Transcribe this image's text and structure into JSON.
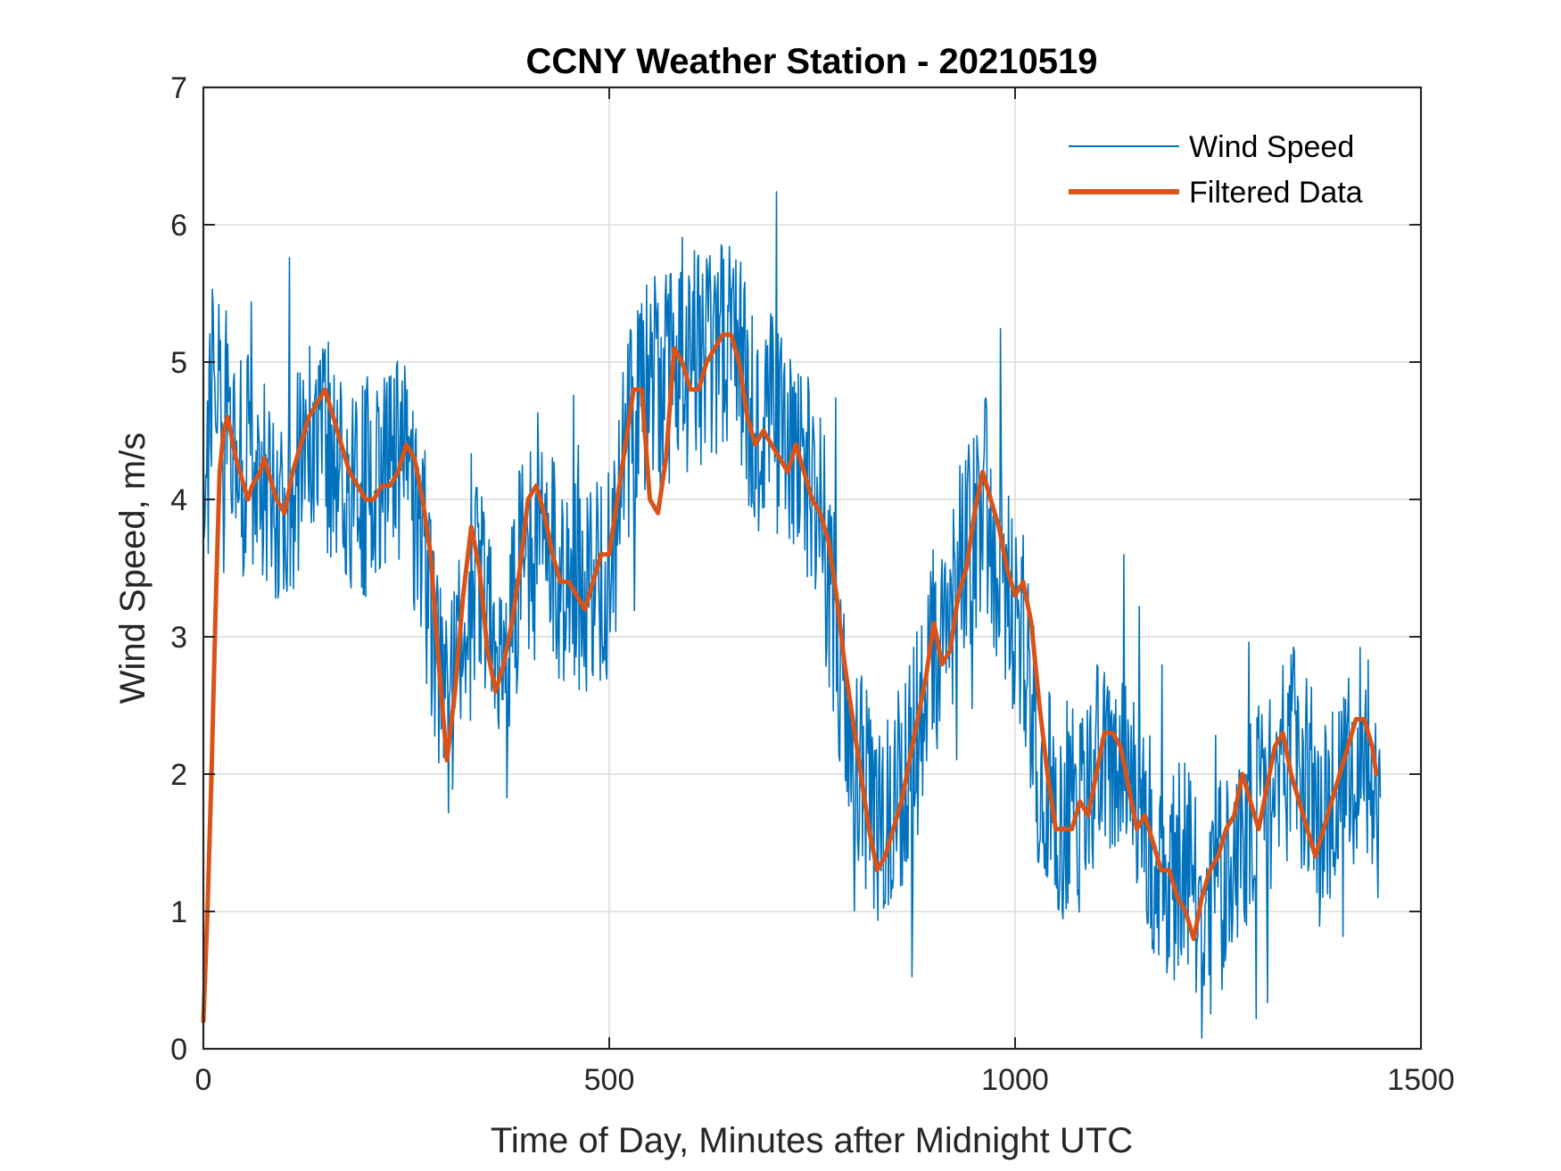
{
  "chart_data": {
    "type": "line",
    "title": "CCNY Weather Station - 20210519",
    "xlabel": "Time of Day, Minutes after Midnight UTC",
    "ylabel": "Wind Speed, m/s",
    "xlim": [
      0,
      1500
    ],
    "ylim": [
      0,
      7
    ],
    "xticks": [
      0,
      500,
      1000,
      1500
    ],
    "yticks": [
      0,
      1,
      2,
      3,
      4,
      5,
      6,
      7
    ],
    "xtick_labels": [
      "0",
      "500",
      "1000",
      "1500"
    ],
    "ytick_labels": [
      "0",
      "1",
      "2",
      "3",
      "4",
      "5",
      "6",
      "7"
    ],
    "grid": true,
    "legend_position": "top-right",
    "series": [
      {
        "name": "Wind Speed",
        "color": "#0072BD",
        "style": "thin-noisy",
        "noise_amplitude": 0.9,
        "x": [
          0,
          5,
          10,
          20,
          30,
          50,
          75,
          100,
          140,
          160,
          200,
          220,
          250,
          270,
          300,
          330,
          360,
          380,
          410,
          440,
          480,
          500,
          520,
          550,
          560,
          590,
          610,
          650,
          680,
          700,
          730,
          760,
          780,
          800,
          830,
          870,
          900,
          930,
          960,
          990,
          1000,
          1010,
          1030,
          1050,
          1080,
          1100,
          1130,
          1160,
          1180,
          1210,
          1240,
          1260,
          1290,
          1310,
          1340,
          1360,
          1380,
          1400,
          1430,
          1450
        ],
        "values": [
          3.8,
          4.5,
          4.8,
          4.7,
          4.6,
          4.3,
          4.1,
          4.0,
          4.5,
          4.3,
          4.1,
          4.2,
          4.3,
          3.6,
          2.3,
          3.6,
          2.8,
          3.2,
          3.9,
          3.4,
          3.3,
          3.5,
          4.3,
          5.0,
          4.7,
          5.1,
          5.0,
          5.2,
          4.5,
          4.6,
          4.3,
          3.9,
          3.0,
          2.3,
          1.5,
          2.1,
          2.9,
          3.4,
          4.0,
          3.4,
          3.2,
          3.0,
          2.0,
          1.7,
          1.8,
          2.2,
          2.0,
          1.6,
          1.3,
          1.3,
          0.9,
          1.3,
          1.7,
          1.9,
          2.2,
          2.0,
          1.6,
          1.8,
          2.4,
          1.7
        ]
      },
      {
        "name": "Filtered Data",
        "color": "#D95319",
        "style": "thick-smooth",
        "x": [
          0,
          5,
          10,
          15,
          20,
          25,
          30,
          40,
          50,
          55,
          60,
          70,
          75,
          80,
          90,
          100,
          110,
          120,
          130,
          140,
          150,
          160,
          170,
          180,
          190,
          200,
          210,
          220,
          230,
          240,
          250,
          260,
          270,
          280,
          290,
          300,
          310,
          320,
          330,
          340,
          350,
          360,
          370,
          380,
          390,
          400,
          410,
          420,
          430,
          440,
          450,
          460,
          470,
          480,
          490,
          500,
          510,
          520,
          530,
          540,
          550,
          560,
          570,
          580,
          590,
          600,
          610,
          620,
          630,
          640,
          650,
          660,
          670,
          680,
          690,
          700,
          710,
          720,
          730,
          740,
          750,
          760,
          770,
          780,
          790,
          800,
          810,
          820,
          830,
          840,
          850,
          860,
          870,
          880,
          890,
          900,
          910,
          920,
          930,
          940,
          950,
          960,
          970,
          980,
          990,
          1000,
          1010,
          1020,
          1030,
          1040,
          1050,
          1060,
          1070,
          1080,
          1090,
          1100,
          1110,
          1120,
          1130,
          1140,
          1150,
          1160,
          1170,
          1180,
          1190,
          1200,
          1210,
          1220,
          1230,
          1240,
          1250,
          1260,
          1270,
          1280,
          1290,
          1300,
          1310,
          1320,
          1330,
          1340,
          1350,
          1360,
          1370,
          1380,
          1390,
          1400,
          1410,
          1420,
          1430,
          1440,
          1445
        ],
        "values": [
          0.2,
          1.0,
          2.0,
          3.2,
          4.2,
          4.5,
          4.6,
          4.3,
          4.1,
          4.0,
          4.1,
          4.2,
          4.3,
          4.2,
          4.0,
          3.9,
          4.2,
          4.4,
          4.6,
          4.7,
          4.8,
          4.6,
          4.4,
          4.2,
          4.1,
          4.0,
          4.0,
          4.1,
          4.1,
          4.2,
          4.4,
          4.3,
          4.0,
          3.6,
          2.8,
          2.1,
          2.6,
          3.3,
          3.8,
          3.5,
          2.9,
          2.6,
          2.8,
          3.1,
          3.5,
          4.0,
          4.1,
          3.9,
          3.6,
          3.4,
          3.4,
          3.3,
          3.2,
          3.4,
          3.6,
          3.6,
          4.0,
          4.4,
          4.8,
          4.8,
          4.0,
          3.9,
          4.3,
          5.1,
          5.0,
          4.8,
          4.8,
          5.0,
          5.1,
          5.2,
          5.2,
          5.0,
          4.6,
          4.4,
          4.5,
          4.4,
          4.3,
          4.2,
          4.4,
          4.2,
          4.0,
          3.9,
          3.7,
          3.3,
          2.8,
          2.4,
          2.0,
          1.6,
          1.3,
          1.4,
          1.6,
          1.8,
          2.1,
          2.4,
          2.7,
          3.1,
          2.8,
          2.9,
          3.3,
          3.5,
          3.9,
          4.2,
          4.0,
          3.8,
          3.5,
          3.3,
          3.4,
          3.1,
          2.5,
          2.0,
          1.6,
          1.6,
          1.6,
          1.8,
          1.7,
          2.0,
          2.3,
          2.3,
          2.2,
          1.9,
          1.6,
          1.7,
          1.5,
          1.3,
          1.3,
          1.1,
          1.0,
          0.8,
          1.1,
          1.3,
          1.4,
          1.6,
          1.7,
          2.0,
          1.8,
          1.6,
          1.9,
          2.2,
          2.3,
          2.0,
          1.8,
          1.6,
          1.4,
          1.6,
          1.8,
          2.0,
          2.2,
          2.4,
          2.4,
          2.2,
          2.0
        ]
      }
    ]
  }
}
